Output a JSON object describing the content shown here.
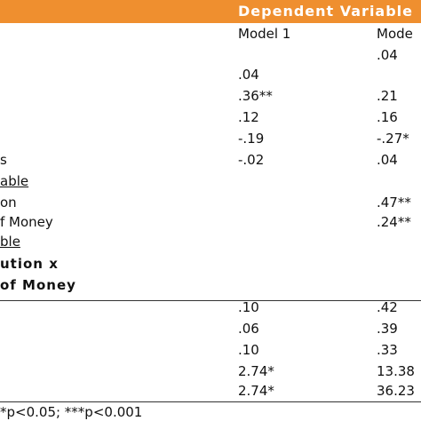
{
  "header": {
    "title": "Dependent Variable",
    "columns": [
      "Model 1",
      "Mode"
    ]
  },
  "rows": [
    {
      "model2": ".04"
    },
    {
      "model1": ".04"
    },
    {
      "model1": ".36**",
      "model2": ".21"
    },
    {
      "model1": ".12",
      "model2": ".16"
    },
    {
      "model1": "-.19",
      "model2": "-.27*"
    },
    {
      "label": "s",
      "model1": "-.02",
      "model2": ".04"
    },
    {
      "label": "able",
      "style": "underline"
    },
    {
      "label": "on",
      "model2": ".47**"
    },
    {
      "label": "f Money",
      "model2": ".24**"
    },
    {
      "label": "ble",
      "style": "underline"
    },
    {
      "label": "ution x",
      "style": "bold"
    },
    {
      "label": "of Money",
      "style": "bold"
    },
    {
      "model1": ".10",
      "model2": ".42"
    },
    {
      "model1": ".06",
      "model2": ".39"
    },
    {
      "model1": ".10",
      "model2": ".33"
    },
    {
      "model1": "2.74*",
      "model2": "13.38"
    },
    {
      "model1": "2.74*",
      "model2": "36.23"
    }
  ],
  "footnote": "*p<0.05; ***p<0.001"
}
